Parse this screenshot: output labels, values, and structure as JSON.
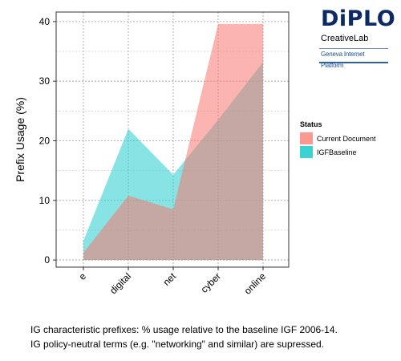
{
  "chart_data": {
    "type": "area",
    "categories": [
      "e",
      "digital",
      "net",
      "cyber",
      "online"
    ],
    "series": [
      {
        "name": "IGFBaseline",
        "values": [
          3.2,
          22.0,
          14.3,
          23.5,
          33.2
        ],
        "color": "#26CDCD"
      },
      {
        "name": "Current Document",
        "values": [
          1.2,
          10.8,
          8.5,
          39.6,
          39.6
        ],
        "color": "#F8766D"
      }
    ],
    "title": "",
    "xlabel": "",
    "ylabel": "Prefix Usage (%)",
    "ylim": [
      -1.2,
      41.6
    ],
    "yticks": [
      0,
      10,
      20,
      30,
      40
    ],
    "grid": true,
    "legend_title": "Status",
    "legend_position": "right"
  },
  "logo": {
    "name": "DiPLO",
    "sub": "CreativeLab",
    "badge": "Geneva Internet Platform"
  },
  "caption": [
    "IG characteristic prefixes: % usage relative to the baseline IGF 2006-14.",
    "IG policy-neutral terms (e.g. \"networking\" and similar) are supressed."
  ]
}
